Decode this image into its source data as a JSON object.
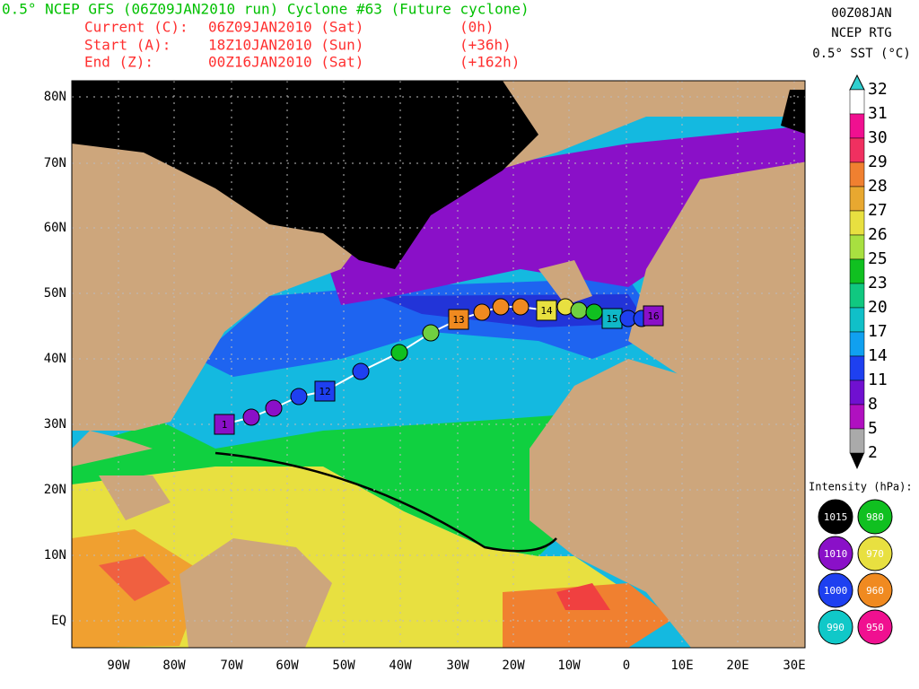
{
  "header": {
    "title": "0.5° NCEP GFS (06Z09JAN2010 run) Cyclone #63 (Future cyclone)",
    "lines": [
      [
        "Current (C):",
        "06Z09JAN2010 (Sat)",
        "(0h)"
      ],
      [
        "Start (A):",
        "18Z10JAN2010 (Sun)",
        "(+36h)"
      ],
      [
        "End (Z):",
        "00Z16JAN2010 (Sat)",
        "(+162h)"
      ]
    ]
  },
  "product": {
    "time": "00Z08JAN",
    "source": "NCEP RTG",
    "field": "0.5° SST (°C)"
  },
  "map": {
    "lat_labels": [
      "80N",
      "70N",
      "60N",
      "50N",
      "40N",
      "30N",
      "20N",
      "10N",
      "EQ"
    ],
    "lon_labels": [
      "90W",
      "80W",
      "70W",
      "60W",
      "50W",
      "40W",
      "30W",
      "20W",
      "10W",
      "0",
      "10E",
      "20E",
      "30E"
    ],
    "track_labels": [
      "1",
      "12",
      "13",
      "14",
      "15",
      "16"
    ]
  },
  "colorbar": {
    "labels": [
      "32",
      "31",
      "30",
      "29",
      "28",
      "27",
      "26",
      "25",
      "23",
      "20",
      "17",
      "14",
      "11",
      "8",
      "5",
      "2"
    ]
  },
  "intensity_legend": {
    "title": "Intensity (hPa):",
    "items": [
      "1015",
      "980",
      "1010",
      "970",
      "1000",
      "960",
      "990",
      "950"
    ]
  }
}
